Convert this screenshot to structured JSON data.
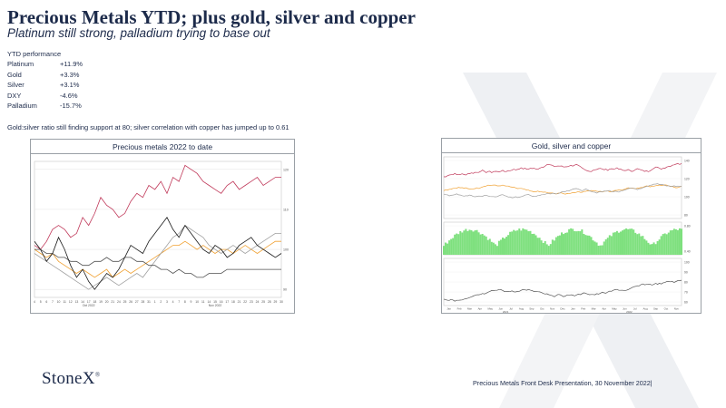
{
  "slide": {
    "title": "Precious Metals YTD; plus gold, silver and copper",
    "subtitle": "Platinum still strong, palladium trying to base out",
    "ytd_heading": "YTD performance",
    "performance": [
      {
        "name": "Platinum",
        "value": "+11.9%"
      },
      {
        "name": "Gold",
        "value": "+3.3%"
      },
      {
        "name": "Silver",
        "value": "+3.1%"
      },
      {
        "name": "DXY",
        "value": "-4.6%"
      },
      {
        "name": "Palladium",
        "value": "-15.7%"
      }
    ],
    "note": "Gold:silver  ratio still finding support at 80; silver correlation with copper has jumped  up to 0.61",
    "logo": "StoneX",
    "footer": "Precious Metals Front Desk Presentation, 30 November 2022|"
  },
  "colors": {
    "navy": "#1c2a4a",
    "platinum": "#c0395a",
    "gold": "#f0a030",
    "silver": "#a0a0a0",
    "dxy": "#505050",
    "palladium": "#1a1a1a",
    "copper_band": "#7ee07e"
  },
  "chart_data": [
    {
      "type": "line",
      "title": "Precious metals 2022 to date",
      "x": [
        "4",
        "5",
        "6",
        "7",
        "10",
        "11",
        "12",
        "13",
        "14",
        "17",
        "18",
        "19",
        "20",
        "21",
        "24",
        "25",
        "26",
        "27",
        "28",
        "31",
        "1",
        "2",
        "3",
        "4",
        "7",
        "8",
        "9",
        "10",
        "11",
        "14",
        "15",
        "16",
        "17",
        "18",
        "21",
        "22",
        "23",
        "24",
        "25",
        "28",
        "29",
        "30"
      ],
      "x_group_labels": [
        "Oct 2022",
        "Nov 2022"
      ],
      "ylim": [
        88,
        122
      ],
      "y_ticks": [
        "120",
        "110",
        "100",
        "90"
      ],
      "series": [
        {
          "values": [
            101,
            100,
            102,
            105,
            106,
            105,
            103,
            104,
            108,
            106,
            109,
            113,
            111,
            110,
            108,
            109,
            112,
            114,
            113,
            116,
            115,
            117,
            114,
            118,
            117,
            121,
            120,
            119,
            117,
            116,
            115,
            114,
            116,
            117,
            115,
            116,
            117,
            118,
            116,
            117,
            118,
            118
          ]
        },
        {
          "values": [
            100,
            99,
            98,
            99,
            97,
            96,
            95,
            94,
            95,
            94,
            93,
            94,
            95,
            93,
            94,
            95,
            94,
            95,
            96,
            97,
            98,
            99,
            100,
            101,
            101,
            102,
            101,
            100,
            101,
            100,
            99,
            100,
            100,
            99,
            100,
            101,
            100,
            99,
            100,
            101,
            102,
            102
          ]
        },
        {
          "values": [
            99,
            98,
            97,
            96,
            95,
            94,
            93,
            92,
            91,
            90,
            91,
            92,
            93,
            92,
            91,
            92,
            93,
            94,
            93,
            95,
            97,
            99,
            101,
            103,
            104,
            106,
            105,
            104,
            103,
            101,
            100,
            99,
            100,
            101,
            100,
            99,
            100,
            101,
            102,
            103,
            104,
            104
          ]
        },
        {
          "values": [
            100,
            100,
            99,
            99,
            98,
            98,
            97,
            97,
            96,
            96,
            97,
            97,
            98,
            97,
            97,
            98,
            98,
            97,
            97,
            96,
            96,
            95,
            95,
            94,
            95,
            94,
            94,
            93,
            93,
            94,
            94,
            94,
            95,
            95,
            95,
            95,
            95,
            95,
            95,
            95,
            95,
            95
          ]
        },
        {
          "values": [
            102,
            100,
            97,
            99,
            103,
            100,
            96,
            93,
            95,
            92,
            90,
            92,
            94,
            93,
            95,
            98,
            101,
            100,
            99,
            102,
            104,
            106,
            108,
            105,
            103,
            106,
            104,
            102,
            100,
            99,
            101,
            100,
            98,
            99,
            101,
            102,
            103,
            101,
            100,
            99,
            98,
            99
          ]
        }
      ]
    },
    {
      "type": "line",
      "title": "Gold, silver and copper",
      "panels": [
        {
          "label": "",
          "y_ticks": [
            "140",
            "120",
            "100",
            "80"
          ],
          "series": [
            "gold",
            "silver",
            "copper"
          ]
        },
        {
          "label": "",
          "y_ticks": [
            "0.80",
            "0.40"
          ],
          "series": [
            "correlation"
          ]
        },
        {
          "label": "",
          "y_ticks": [
            "100",
            "90",
            "80",
            "70",
            "60"
          ],
          "series": [
            "gold:silver ratio"
          ]
        }
      ],
      "x": [
        "Jan",
        "Feb",
        "Mar",
        "Apr",
        "May",
        "Jun",
        "Jul",
        "Aug",
        "Sep",
        "Oct",
        "Nov",
        "Dec",
        "Jan",
        "Feb",
        "Mar",
        "Apr",
        "May",
        "Jun",
        "Jul",
        "Aug",
        "Sep",
        "Oct",
        "Nov"
      ],
      "x_group_labels": [
        "2021",
        "2022"
      ]
    }
  ]
}
